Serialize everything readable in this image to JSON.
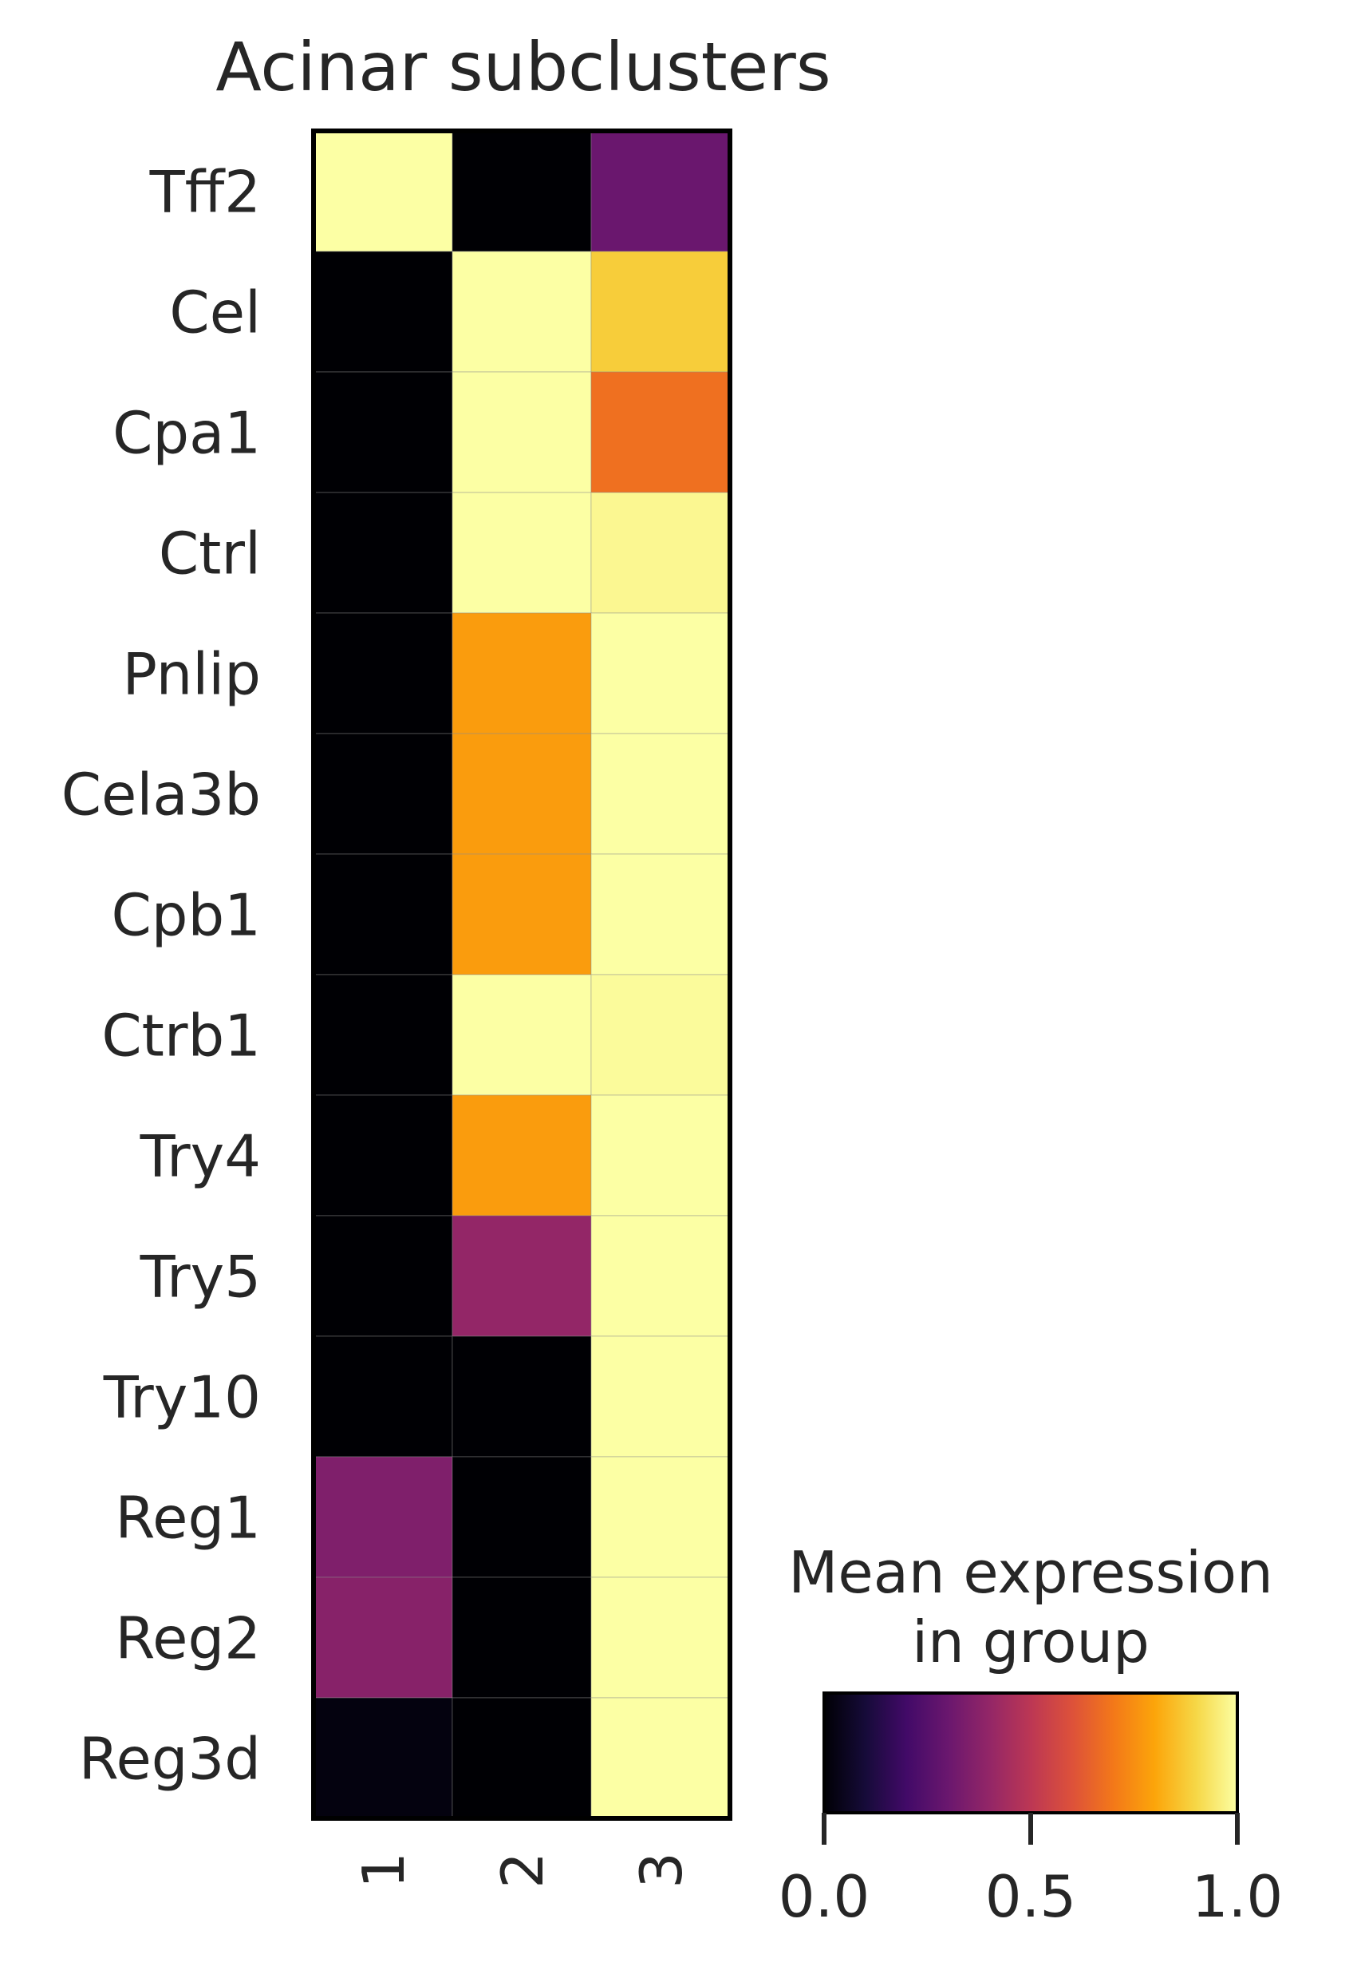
{
  "chart_data": {
    "type": "heatmap",
    "title": "Acinar subclusters",
    "xlabel": "",
    "ylabel": "",
    "x_categories": [
      "1",
      "2",
      "3"
    ],
    "y_categories": [
      "Tff2",
      "Cel",
      "Cpa1",
      "Ctrl",
      "Pnlip",
      "Cela3b",
      "Cpb1",
      "Ctrb1",
      "Try4",
      "Try5",
      "Try10",
      "Reg1",
      "Reg2",
      "Reg3d"
    ],
    "values": [
      [
        1.0,
        0.0,
        0.3
      ],
      [
        0.0,
        1.0,
        0.88
      ],
      [
        0.0,
        1.0,
        0.68
      ],
      [
        0.0,
        1.0,
        0.98
      ],
      [
        0.0,
        0.78,
        1.0
      ],
      [
        0.0,
        0.78,
        1.0
      ],
      [
        0.0,
        0.78,
        1.0
      ],
      [
        0.0,
        1.0,
        0.99
      ],
      [
        0.0,
        0.78,
        1.0
      ],
      [
        0.0,
        0.4,
        1.0
      ],
      [
        0.0,
        0.0,
        1.0
      ],
      [
        0.35,
        0.0,
        1.0
      ],
      [
        0.37,
        0.0,
        1.0
      ],
      [
        0.02,
        0.0,
        1.0
      ]
    ],
    "colormap": "inferno",
    "colorbar": {
      "title_lines": [
        "Mean expression",
        "in group"
      ],
      "ticks": [
        0.0,
        0.5,
        1.0
      ],
      "tick_labels": [
        "0.0",
        "0.5",
        "1.0"
      ],
      "range": [
        0,
        1
      ],
      "orientation": "horizontal",
      "placement": "bottom-right"
    },
    "grid": false
  }
}
